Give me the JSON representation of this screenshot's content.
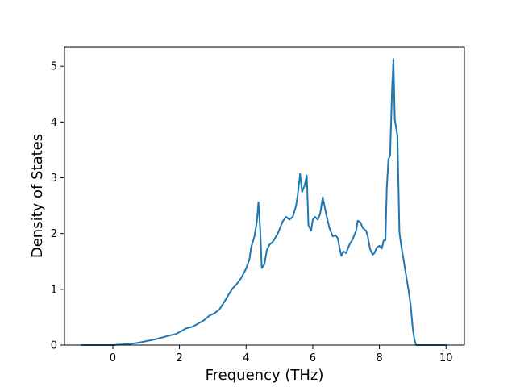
{
  "chart_data": {
    "type": "line",
    "title": "",
    "xlabel": "Frequency (THz)",
    "ylabel": "Density of States",
    "xlim": [
      -1.45,
      10.55
    ],
    "ylim": [
      0,
      5.35
    ],
    "xticks": [
      0,
      2,
      4,
      6,
      8,
      10
    ],
    "yticks": [
      0,
      1,
      2,
      3,
      4,
      5
    ],
    "grid": false,
    "legend": "none",
    "colors": {
      "series": "#1f77b4",
      "axes": "#000000",
      "background": "#ffffff"
    },
    "series": [
      {
        "x": [
          -0.95,
          -0.5,
          0.0,
          0.25,
          0.5,
          0.75,
          1.0,
          1.25,
          1.5,
          1.75,
          1.9,
          2.05,
          2.2,
          2.4,
          2.6,
          2.75,
          2.9,
          3.05,
          3.2,
          3.35,
          3.5,
          3.6,
          3.7,
          3.85,
          4.0,
          4.1,
          4.15,
          4.25,
          4.32,
          4.37,
          4.42,
          4.47,
          4.55,
          4.62,
          4.7,
          4.8,
          4.95,
          5.1,
          5.2,
          5.3,
          5.4,
          5.5,
          5.55,
          5.62,
          5.68,
          5.75,
          5.82,
          5.87,
          5.95,
          6.0,
          6.07,
          6.15,
          6.22,
          6.3,
          6.4,
          6.5,
          6.6,
          6.68,
          6.75,
          6.8,
          6.86,
          6.92,
          7.0,
          7.1,
          7.2,
          7.3,
          7.35,
          7.43,
          7.5,
          7.6,
          7.65,
          7.72,
          7.8,
          7.85,
          7.92,
          8.0,
          8.07,
          8.13,
          8.18,
          8.22,
          8.27,
          8.32,
          8.38,
          8.42,
          8.46,
          8.5,
          8.54,
          8.6,
          8.65,
          8.72,
          8.8,
          8.87,
          8.94,
          9.0,
          9.05,
          9.1,
          9.2,
          9.5,
          10.0
        ],
        "y": [
          0.0,
          0.0,
          0.0,
          0.01,
          0.02,
          0.04,
          0.07,
          0.1,
          0.14,
          0.18,
          0.2,
          0.25,
          0.3,
          0.33,
          0.4,
          0.45,
          0.53,
          0.57,
          0.64,
          0.78,
          0.93,
          1.02,
          1.08,
          1.2,
          1.37,
          1.54,
          1.75,
          1.95,
          2.2,
          2.56,
          2.1,
          1.38,
          1.45,
          1.7,
          1.8,
          1.85,
          2.0,
          2.22,
          2.3,
          2.25,
          2.3,
          2.5,
          2.7,
          3.07,
          2.75,
          2.85,
          3.04,
          2.15,
          2.05,
          2.25,
          2.3,
          2.25,
          2.35,
          2.65,
          2.35,
          2.1,
          1.95,
          1.97,
          1.92,
          1.75,
          1.6,
          1.68,
          1.65,
          1.8,
          1.9,
          2.05,
          2.23,
          2.2,
          2.1,
          2.05,
          1.95,
          1.72,
          1.62,
          1.65,
          1.75,
          1.78,
          1.73,
          1.88,
          1.88,
          2.8,
          3.33,
          3.4,
          4.6,
          5.13,
          4.05,
          3.9,
          3.75,
          2.02,
          1.8,
          1.55,
          1.25,
          1.0,
          0.7,
          0.3,
          0.1,
          0.0,
          0.0,
          0.0,
          0.0
        ]
      }
    ]
  }
}
